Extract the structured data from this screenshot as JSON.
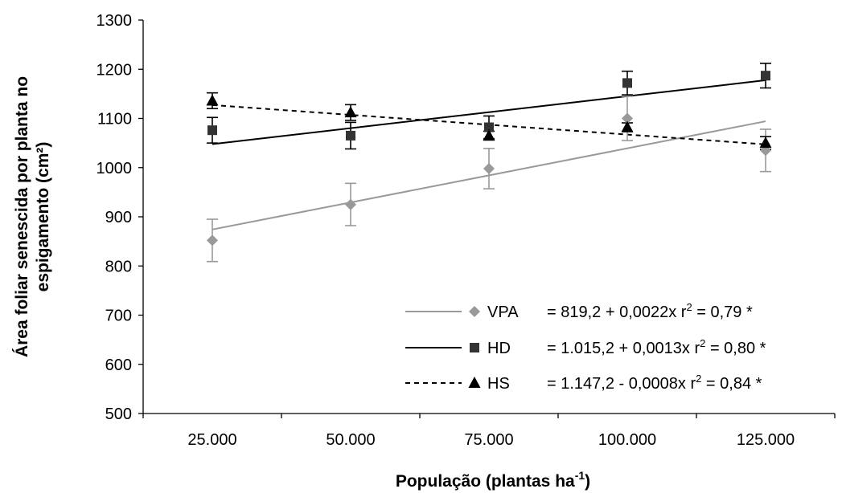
{
  "chart_data": {
    "type": "scatter",
    "xlabel": "População (plantas ha",
    "xlabel_sup": "-1",
    "xlabel_end": ")",
    "ylabel_line1": "Área foliar senescida por planta no",
    "ylabel_line2": "espigamento (cm²)",
    "x_categories": [
      "25.000",
      "50.000",
      "75.000",
      "100.000",
      "125.000"
    ],
    "x_values": [
      25000,
      50000,
      75000,
      100000,
      125000
    ],
    "xlim": [
      12500,
      137500
    ],
    "ylim": [
      500,
      1300
    ],
    "yticks": [
      "500",
      "600",
      "700",
      "800",
      "900",
      "1000",
      "1100",
      "1200",
      "1300"
    ],
    "grid": false,
    "legend_position": "bottom-right",
    "series": [
      {
        "name": "VPA",
        "color": "#999999",
        "marker": "diamond",
        "line_style": "solid",
        "values": [
          852,
          925,
          998,
          1100,
          1035
        ],
        "errors": [
          43,
          43,
          41,
          45,
          43
        ],
        "fit": {
          "intercept": 819.2,
          "slope": 0.0022
        },
        "equation": "= 819,2 + 0,0022x",
        "r2_label": "r",
        "r2_sup": "2",
        "r2_value": " = 0,79 *"
      },
      {
        "name": "HD",
        "color": "#000000",
        "marker": "square",
        "line_style": "solid",
        "values": [
          1076,
          1065,
          1082,
          1172,
          1187
        ],
        "errors": [
          26,
          27,
          23,
          24,
          25
        ],
        "fit": {
          "intercept": 1015.2,
          "slope": 0.0013
        },
        "equation": "= 1.015,2 + 0,0013x",
        "r2_label": "r",
        "r2_sup": "2",
        "r2_value": " = 0,80 *"
      },
      {
        "name": "HS",
        "color": "#000000",
        "marker": "triangle",
        "line_style": "dashed",
        "values": [
          1136,
          1112,
          1065,
          1082,
          1050
        ],
        "errors": [
          16,
          16,
          9,
          9,
          13
        ],
        "fit": {
          "intercept": 1147.2,
          "slope": -0.0008
        },
        "equation": "= 1.147,2 - 0,0008x",
        "r2_label": "r",
        "r2_sup": "2",
        "r2_value": " = 0,84 *"
      }
    ]
  }
}
